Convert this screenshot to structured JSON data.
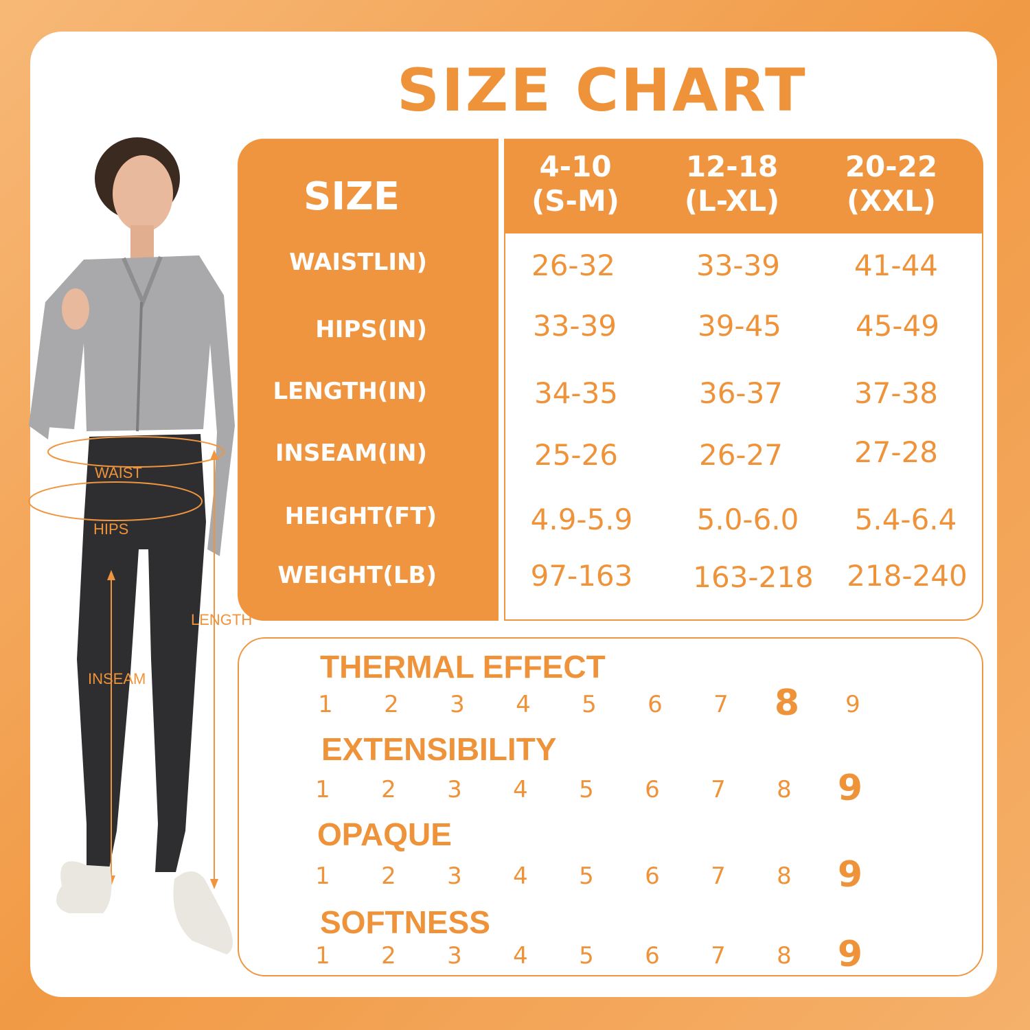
{
  "title": "SIZE CHART",
  "colors": {
    "accent": "#f0953f",
    "background": "#f4a85c"
  },
  "size_table": {
    "corner_label": "SIZE",
    "columns": [
      {
        "size": "4-10",
        "alpha": "(S-M)"
      },
      {
        "size": "12-18",
        "alpha": "(L-XL)"
      },
      {
        "size": "20-22",
        "alpha": "(XXL)"
      }
    ],
    "rows": [
      {
        "label": "WAISTLIN)",
        "values": [
          "26-32",
          "33-39",
          "41-44"
        ]
      },
      {
        "label": "HIPS(IN)",
        "values": [
          "33-39",
          "39-45",
          "45-49"
        ]
      },
      {
        "label": "LENGTH(IN)",
        "values": [
          "34-35",
          "36-37",
          "37-38"
        ]
      },
      {
        "label": "INSEAM(IN)",
        "values": [
          "25-26",
          "26-27",
          "27-28"
        ]
      },
      {
        "label": "HEIGHT(FT)",
        "values": [
          "4.9-5.9",
          "5.0-6.0",
          "5.4-6.4"
        ]
      },
      {
        "label": "WEIGHT(LB)",
        "values": [
          "97-163",
          "163-218",
          "218-240"
        ]
      }
    ]
  },
  "ratings": [
    {
      "title": "THERMAL EFFECT",
      "scale": [
        "1",
        "2",
        "3",
        "4",
        "5",
        "6",
        "7",
        "8",
        "9"
      ],
      "value": 8
    },
    {
      "title": "EXTENSIBILITY",
      "scale": [
        "1",
        "2",
        "3",
        "4",
        "5",
        "6",
        "7",
        "8",
        "9"
      ],
      "value": 9
    },
    {
      "title": "OPAQUE",
      "scale": [
        "1",
        "2",
        "3",
        "4",
        "5",
        "6",
        "7",
        "8",
        "9"
      ],
      "value": 9
    },
    {
      "title": "SOFTNESS",
      "scale": [
        "1",
        "2",
        "3",
        "4",
        "5",
        "6",
        "7",
        "8",
        "9"
      ],
      "value": 9
    }
  ],
  "figure_labels": {
    "waist": "WAIST",
    "hips": "HIPS",
    "length": "LENGTH",
    "inseam": "INSEAM"
  }
}
